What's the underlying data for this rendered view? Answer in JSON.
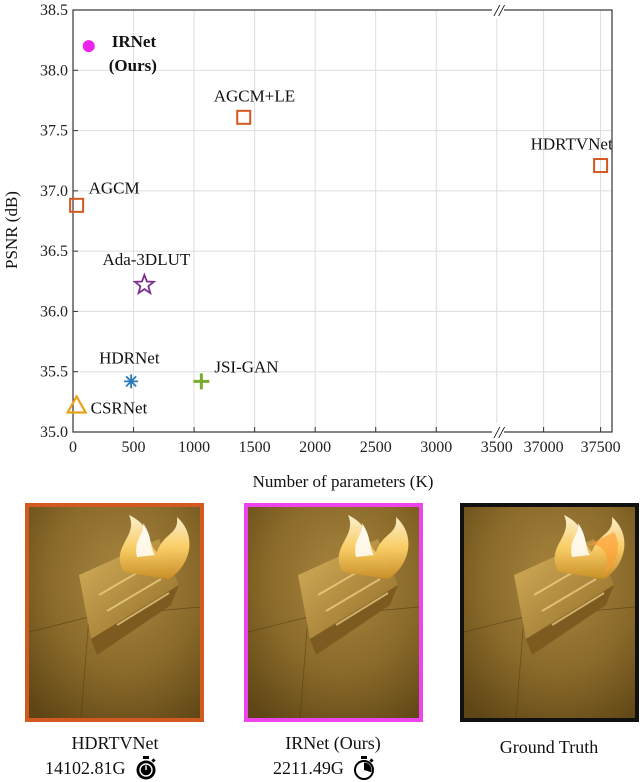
{
  "chart_data": {
    "type": "scatter",
    "xlabel": "Number of parameters (K)",
    "ylabel": "PSNR (dB)",
    "ylim": [
      35.0,
      38.5
    ],
    "y_ticks": [
      "35.0",
      "35.5",
      "36.0",
      "36.5",
      "37.0",
      "37.5",
      "38.0",
      "38.5"
    ],
    "x_ticks": [
      "0",
      "500",
      "1000",
      "1500",
      "2000",
      "2500",
      "3000",
      "3500",
      "37000",
      "37500"
    ],
    "x_break": "//",
    "grid": true,
    "points": [
      {
        "label": "IRNet",
        "label2": "(Ours)",
        "x": 130,
        "y": 38.2,
        "marker": "filled-circle",
        "color": "#ee22ee",
        "bold": true
      },
      {
        "label": "AGCM+LE",
        "x": 1410,
        "y": 37.61,
        "marker": "square",
        "color": "#d2591f"
      },
      {
        "label": "HDRTVNet",
        "x": 37500,
        "y": 37.21,
        "marker": "square",
        "color": "#d2591f"
      },
      {
        "label": "AGCM",
        "x": 30,
        "y": 36.88,
        "marker": "square",
        "color": "#d2591f"
      },
      {
        "label": "Ada-3DLUT",
        "x": 590,
        "y": 36.22,
        "marker": "star",
        "color": "#7b2f8e"
      },
      {
        "label": "HDRNet",
        "x": 480,
        "y": 35.42,
        "marker": "asterisk",
        "color": "#2b7bb9"
      },
      {
        "label": "JSI-GAN",
        "x": 1060,
        "y": 35.42,
        "marker": "plus",
        "color": "#77ac30"
      },
      {
        "label": "CSRNet",
        "x": 30,
        "y": 35.22,
        "marker": "triangle",
        "color": "#e8a21a"
      }
    ]
  },
  "panels": [
    {
      "caption": "HDRTVNet",
      "cost": "14102.81G",
      "border_color": "#d2591f"
    },
    {
      "caption": "IRNet (Ours)",
      "cost": "2211.49G",
      "border_color": "#ee44ee"
    },
    {
      "caption": "Ground Truth",
      "cost": "",
      "border_color": "#111111"
    }
  ]
}
